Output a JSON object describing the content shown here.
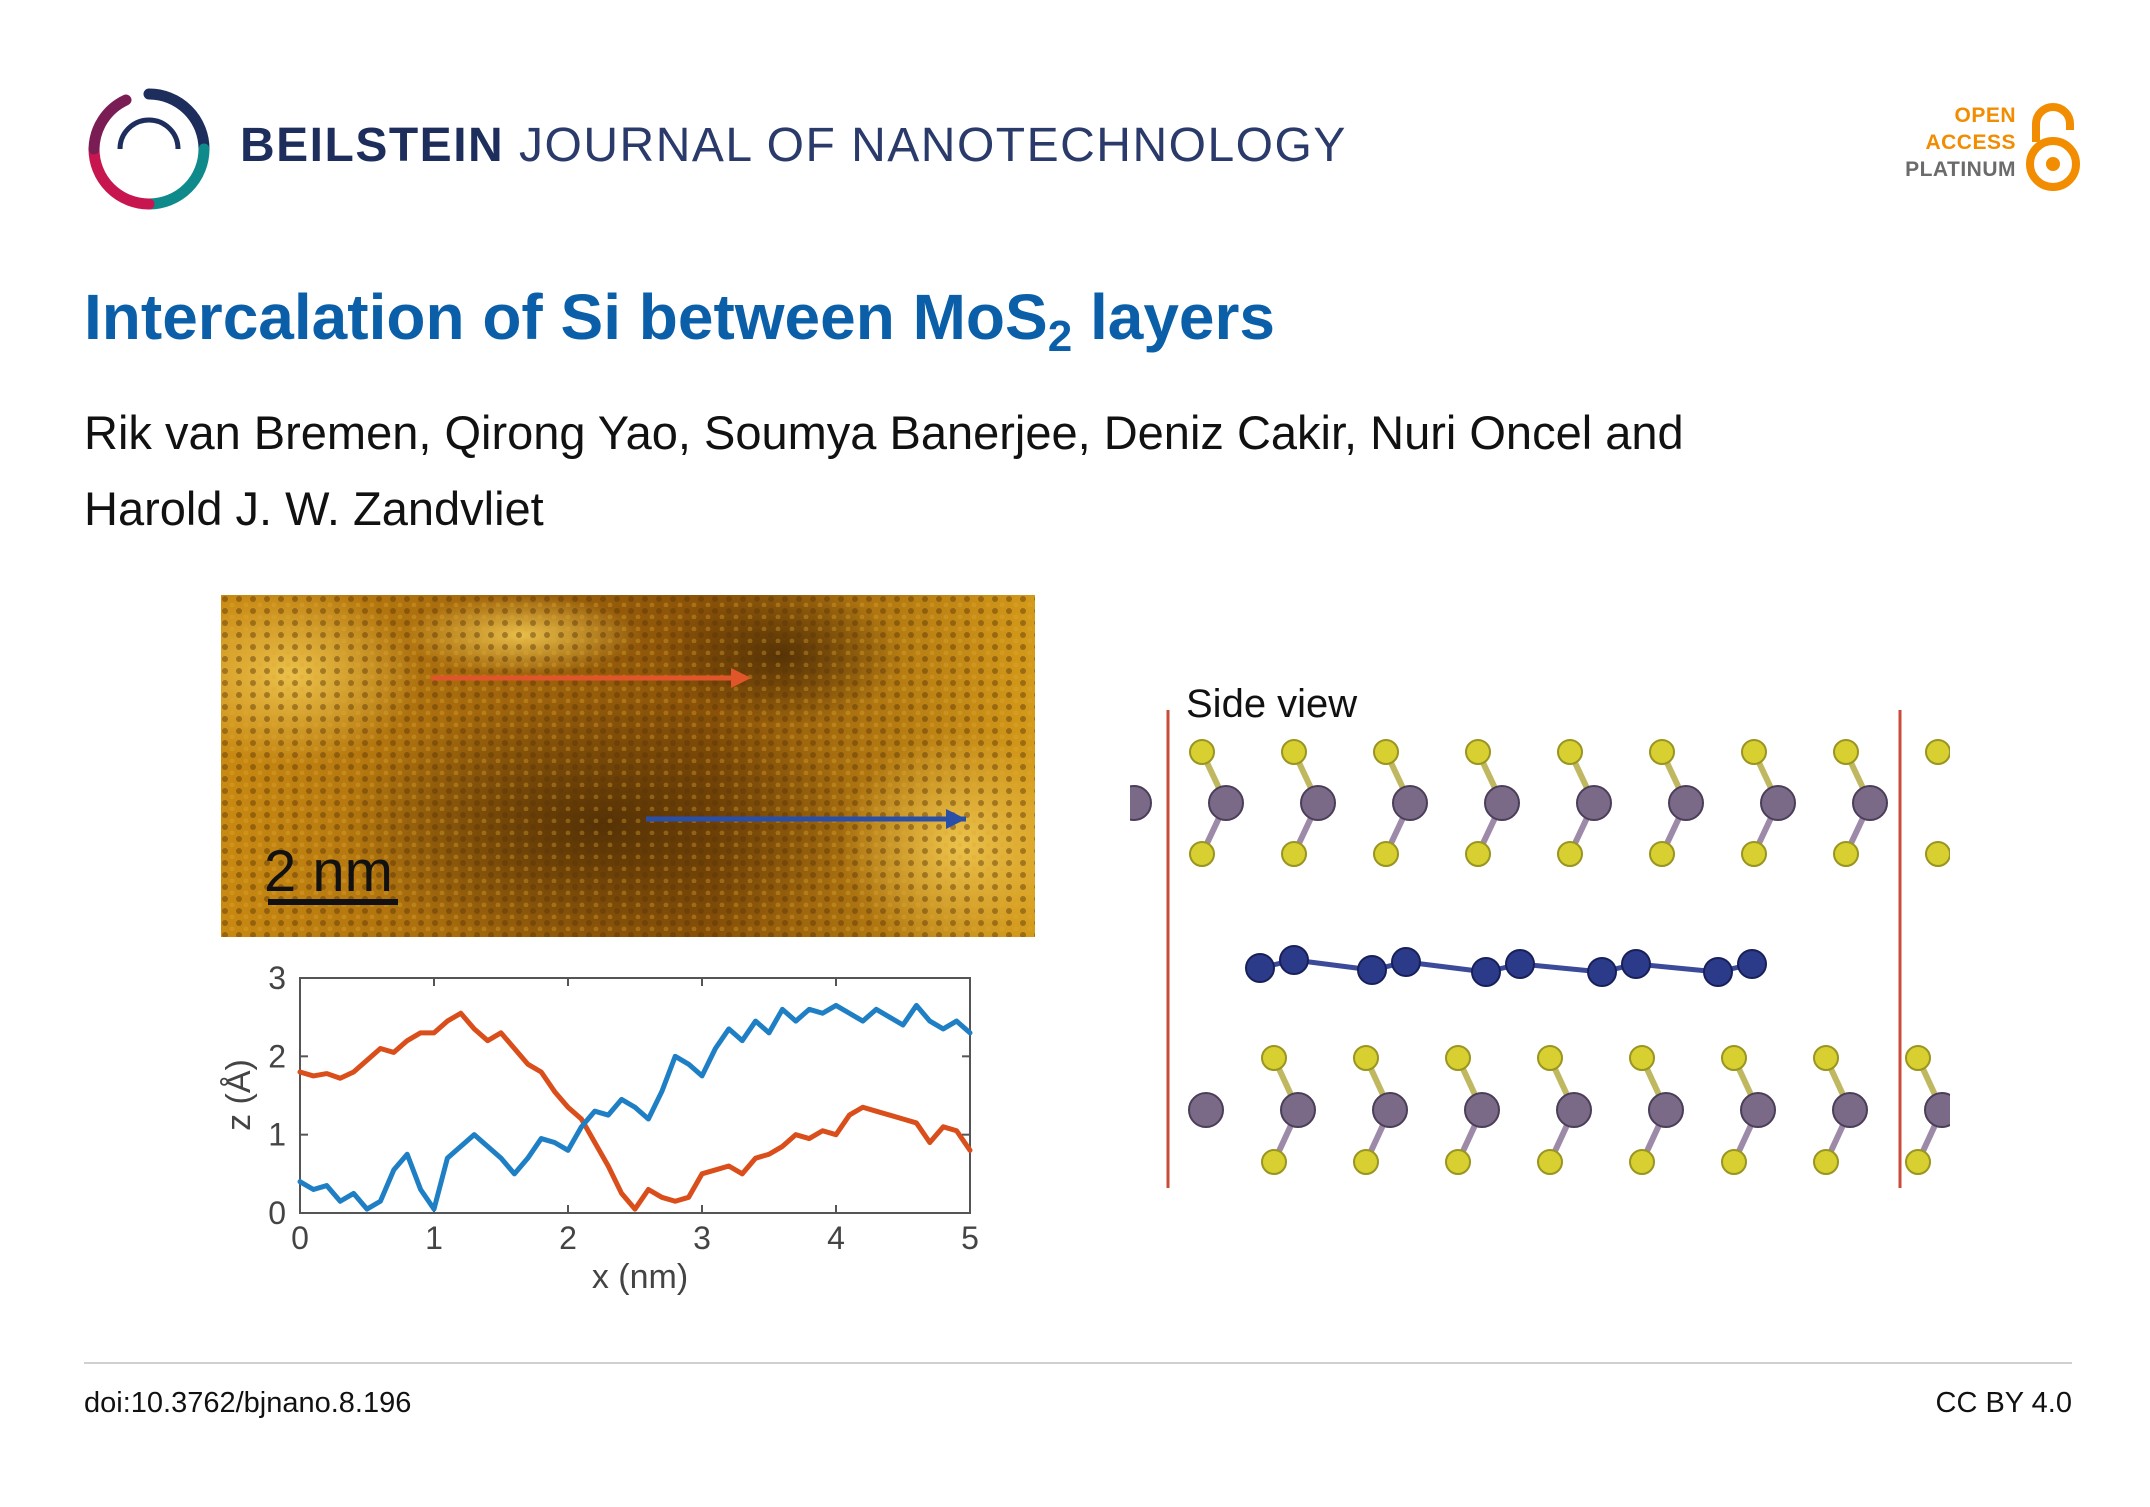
{
  "journal": {
    "name_bold": "BEILSTEIN",
    "name_rest": "JOURNAL OF NANOTECHNOLOGY",
    "logo_icon": "beilstein-ring-logo"
  },
  "badge": {
    "line1": "OPEN",
    "line2": "ACCESS",
    "line3": "PLATINUM",
    "icon": "open-access-lock-icon",
    "orange": "#f28c00"
  },
  "title": {
    "before": "Intercalation of Si between MoS",
    "subscript": "2",
    "after": " layers"
  },
  "authors": "Rik van Bremen, Qirong Yao, Soumya Banerjee, Deniz Cakir, Nuri Oncel and Harold J. W. Zandvliet",
  "figure": {
    "stm_scale_label": "2 nm",
    "side_view_label": "Side view"
  },
  "chart_data": {
    "type": "line",
    "xlabel": "x (nm)",
    "ylabel": "z (Å)",
    "xlim": [
      0,
      5
    ],
    "ylim": [
      0,
      3
    ],
    "xticks": [
      "0",
      "1",
      "2",
      "3",
      "4",
      "5"
    ],
    "yticks": [
      "0",
      "1",
      "2",
      "3"
    ],
    "grid": false,
    "series": [
      {
        "color": "#d94e1a",
        "x": [
          0,
          0.1,
          0.2,
          0.3,
          0.4,
          0.5,
          0.6,
          0.7,
          0.8,
          0.9,
          1.0,
          1.1,
          1.2,
          1.3,
          1.4,
          1.5,
          1.6,
          1.7,
          1.8,
          1.9,
          2.0,
          2.1,
          2.2,
          2.3,
          2.4,
          2.5,
          2.6,
          2.7,
          2.8,
          2.9,
          3.0,
          3.1,
          3.2,
          3.3,
          3.4,
          3.5,
          3.6,
          3.7,
          3.8,
          3.9,
          4.0,
          4.1,
          4.2,
          4.3,
          4.4,
          4.5,
          4.6,
          4.7,
          4.8,
          4.9,
          5.0
        ],
        "values": [
          1.8,
          1.75,
          1.78,
          1.72,
          1.8,
          1.95,
          2.1,
          2.05,
          2.2,
          2.3,
          2.3,
          2.45,
          2.55,
          2.35,
          2.2,
          2.3,
          2.1,
          1.9,
          1.8,
          1.55,
          1.35,
          1.2,
          0.9,
          0.6,
          0.25,
          0.05,
          0.3,
          0.2,
          0.15,
          0.2,
          0.5,
          0.55,
          0.6,
          0.5,
          0.7,
          0.75,
          0.85,
          1.0,
          0.95,
          1.05,
          1.0,
          1.25,
          1.35,
          1.3,
          1.25,
          1.2,
          1.15,
          0.9,
          1.1,
          1.05,
          0.8
        ]
      },
      {
        "color": "#1f7fc4",
        "x": [
          0,
          0.1,
          0.2,
          0.3,
          0.4,
          0.5,
          0.6,
          0.7,
          0.8,
          0.9,
          1.0,
          1.1,
          1.2,
          1.3,
          1.4,
          1.5,
          1.6,
          1.7,
          1.8,
          1.9,
          2.0,
          2.1,
          2.2,
          2.3,
          2.4,
          2.5,
          2.6,
          2.7,
          2.8,
          2.9,
          3.0,
          3.1,
          3.2,
          3.3,
          3.4,
          3.5,
          3.6,
          3.7,
          3.8,
          3.9,
          4.0,
          4.1,
          4.2,
          4.3,
          4.4,
          4.5,
          4.6,
          4.7,
          4.8,
          4.9,
          5.0
        ],
        "values": [
          0.4,
          0.3,
          0.35,
          0.15,
          0.25,
          0.05,
          0.15,
          0.55,
          0.75,
          0.3,
          0.05,
          0.7,
          0.85,
          1.0,
          0.85,
          0.7,
          0.5,
          0.7,
          0.95,
          0.9,
          0.8,
          1.1,
          1.3,
          1.25,
          1.45,
          1.35,
          1.2,
          1.55,
          2.0,
          1.9,
          1.75,
          2.1,
          2.35,
          2.2,
          2.45,
          2.3,
          2.6,
          2.45,
          2.6,
          2.55,
          2.65,
          2.55,
          2.45,
          2.6,
          2.5,
          2.4,
          2.65,
          2.45,
          2.35,
          2.45,
          2.3
        ]
      }
    ]
  },
  "footer": {
    "doi": "doi:10.3762/bjnano.8.196",
    "license": "CC BY 4.0"
  }
}
